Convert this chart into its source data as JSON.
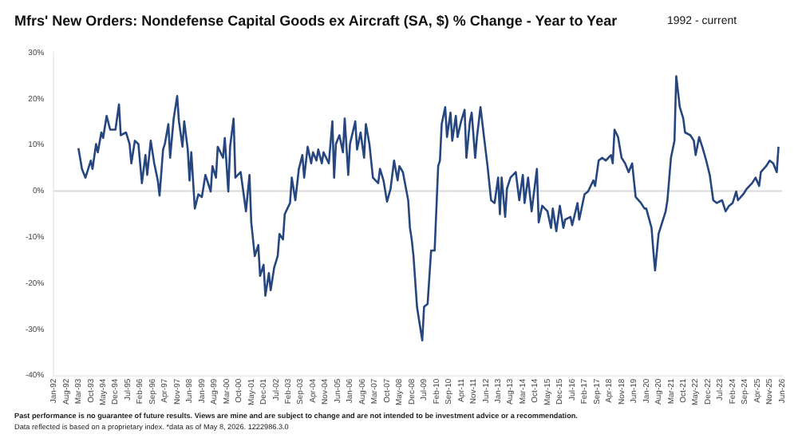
{
  "chart_data": {
    "type": "line",
    "title": "Mfrs' New Orders: Nondefense Capital Goods ex Aircraft (SA, $) % Change - Year to Year",
    "subtitle": "1992 - current",
    "annotations": [
      "Past performance is no guarantee of future results. Views are mine and are subject to change and are not intended to be investment advice or a recommendation.",
      "Data reflected is based on a proprietary index. *data as of May 8, 2026. 1222986.3.0"
    ],
    "x": [
      "1993-03",
      "1993-05",
      "1993-07",
      "1993-10",
      "1993-11",
      "1994-01",
      "1994-02",
      "1994-04",
      "1994-05",
      "1994-07",
      "1994-09",
      "1994-12",
      "1995-02",
      "1995-03",
      "1995-06",
      "1995-08",
      "1995-09",
      "1995-11",
      "1996-01",
      "1996-03",
      "1996-05",
      "1996-06",
      "1996-08",
      "1996-10",
      "1996-12",
      "1997-01",
      "1997-03",
      "1997-04",
      "1997-06",
      "1997-07",
      "1997-09",
      "1997-11",
      "1997-12",
      "1998-02",
      "1998-03",
      "1998-05",
      "1998-06",
      "1998-07",
      "1998-09",
      "1998-11",
      "1999-01",
      "1999-03",
      "1999-06",
      "1999-07",
      "1999-09",
      "1999-10",
      "2000-01",
      "2000-02",
      "2000-04",
      "2000-05",
      "2000-07",
      "2000-08",
      "2000-11",
      "2001-02",
      "2001-04",
      "2001-05",
      "2001-07",
      "2001-09",
      "2001-10",
      "2001-12",
      "2002-01",
      "2002-03",
      "2002-04",
      "2002-06",
      "2002-08",
      "2002-09",
      "2002-11",
      "2002-12",
      "2003-03",
      "2003-04",
      "2003-06",
      "2003-08",
      "2003-10",
      "2003-11",
      "2004-01",
      "2004-03",
      "2004-04",
      "2004-06",
      "2004-07",
      "2004-09",
      "2004-10",
      "2005-01",
      "2005-03",
      "2005-04",
      "2005-05",
      "2005-07",
      "2005-09",
      "2005-10",
      "2005-12",
      "2006-01",
      "2006-04",
      "2006-05",
      "2006-07",
      "2006-09",
      "2006-10",
      "2006-12",
      "2007-02",
      "2007-05",
      "2007-06",
      "2007-08",
      "2007-10",
      "2007-12",
      "2008-02",
      "2008-04",
      "2008-05",
      "2008-07",
      "2008-10",
      "2008-11",
      "2008-12",
      "2009-01",
      "2009-03",
      "2009-04",
      "2009-06",
      "2009-07",
      "2009-09",
      "2009-11",
      "2010-01",
      "2010-03",
      "2010-04",
      "2010-05",
      "2010-07",
      "2010-08",
      "2010-10",
      "2010-11",
      "2011-01",
      "2011-02",
      "2011-04",
      "2011-06",
      "2011-07",
      "2011-09",
      "2011-10",
      "2011-12",
      "2012-01",
      "2012-03",
      "2012-05",
      "2012-07",
      "2012-09",
      "2012-11",
      "2013-01",
      "2013-02",
      "2013-03",
      "2013-05",
      "2013-06",
      "2013-08",
      "2013-11",
      "2014-01",
      "2014-03",
      "2014-04",
      "2014-06",
      "2014-08",
      "2014-11",
      "2014-12",
      "2015-02",
      "2015-05",
      "2015-07",
      "2015-08",
      "2015-10",
      "2015-12",
      "2016-02",
      "2016-03",
      "2016-06",
      "2016-07",
      "2016-10",
      "2016-11",
      "2017-02",
      "2017-04",
      "2017-07",
      "2017-08",
      "2017-10",
      "2017-12",
      "2018-02",
      "2018-05",
      "2018-06",
      "2018-07",
      "2018-09",
      "2018-11",
      "2019-01",
      "2019-03",
      "2019-05",
      "2019-07",
      "2019-10",
      "2019-12",
      "2020-01",
      "2020-04",
      "2020-05",
      "2020-06",
      "2020-08",
      "2020-12",
      "2021-01",
      "2021-03",
      "2021-05",
      "2021-06",
      "2021-08",
      "2021-10",
      "2021-11",
      "2022-02",
      "2022-04",
      "2022-05",
      "2022-07",
      "2022-09",
      "2022-11",
      "2023-01",
      "2023-03",
      "2023-05",
      "2023-08",
      "2023-10",
      "2023-12",
      "2024-02",
      "2024-04",
      "2024-05",
      "2024-08",
      "2024-10",
      "2025-01",
      "2025-03",
      "2025-05",
      "2025-06",
      "2025-09",
      "2025-11",
      "2026-01",
      "2026-03",
      "2026-04"
    ],
    "series": [
      {
        "color": "#25467f",
        "values": [
          9.3,
          4.8,
          2.9,
          6.6,
          4.8,
          10.2,
          8.4,
          12.7,
          11.5,
          16.3,
          13.3,
          13.3,
          18.8,
          12.1,
          12.7,
          10.2,
          6.0,
          10.9,
          10.2,
          1.7,
          7.8,
          3.5,
          10.9,
          6.0,
          2.3,
          -1.0,
          9.0,
          10.2,
          14.5,
          7.2,
          15.7,
          20.6,
          15.1,
          9.6,
          15.1,
          9.0,
          2.3,
          8.4,
          -3.8,
          -0.7,
          -1.3,
          3.5,
          -0.1,
          5.4,
          2.9,
          9.6,
          7.2,
          11.5,
          -0.1,
          9.6,
          15.7,
          2.9,
          4.1,
          -4.4,
          3.5,
          -6.8,
          -14.1,
          -11.7,
          -18.4,
          -16.0,
          -22.7,
          -17.8,
          -21.5,
          -16.6,
          -14.1,
          -9.3,
          -10.5,
          -5.0,
          -2.6,
          2.9,
          -2.0,
          4.8,
          7.8,
          2.9,
          9.6,
          6.0,
          8.4,
          6.6,
          9.0,
          6.0,
          8.4,
          6.0,
          15.1,
          2.9,
          10.2,
          12.1,
          8.4,
          15.7,
          3.5,
          10.2,
          15.1,
          9.0,
          12.7,
          7.2,
          14.5,
          10.2,
          2.9,
          1.7,
          4.8,
          2.3,
          -2.3,
          0.5,
          6.6,
          2.3,
          5.4,
          4.1,
          -2.0,
          -8.0,
          -10.5,
          -14.1,
          -25.1,
          -27.6,
          -32.4,
          -25.1,
          -24.5,
          -12.9,
          -12.9,
          5.4,
          6.6,
          14.5,
          18.2,
          11.7,
          17.0,
          10.9,
          16.3,
          11.7,
          15.1,
          17.6,
          7.2,
          15.1,
          17.0,
          7.2,
          11.7,
          18.2,
          11.7,
          5.4,
          -2.0,
          -2.6,
          2.9,
          -5.0,
          2.9,
          -5.6,
          0.5,
          2.9,
          4.1,
          -2.0,
          3.5,
          -2.6,
          2.9,
          -4.4,
          4.8,
          -6.8,
          -3.2,
          -4.4,
          -8.0,
          -3.8,
          -8.7,
          -3.2,
          -8.0,
          -6.2,
          -5.6,
          -7.4,
          -2.6,
          -6.2,
          -0.7,
          -0.1,
          2.3,
          1.1,
          6.6,
          7.2,
          6.6,
          7.8,
          6.0,
          13.3,
          11.7,
          7.2,
          6.0,
          4.1,
          6.0,
          -1.3,
          -2.6,
          -3.8,
          -3.8,
          -8.0,
          -12.9,
          -17.2,
          -9.3,
          -4.4,
          -2.0,
          7.2,
          10.9,
          24.9,
          18.2,
          15.7,
          12.7,
          12.1,
          10.9,
          7.8,
          11.7,
          9.3,
          6.6,
          3.5,
          -2.0,
          -2.6,
          -2.0,
          -4.4,
          -3.2,
          -2.6,
          -0.1,
          -2.0,
          -0.7,
          0.5,
          1.7,
          2.9,
          1.1,
          4.1,
          5.4,
          6.6,
          6.0,
          4.1,
          9.6
        ]
      }
    ],
    "xlim": [
      "1992-01",
      "2026-06"
    ],
    "xticks": [
      {
        "value": "1992-01",
        "label": "Jan-92"
      },
      {
        "value": "1992-08",
        "label": "Aug-92"
      },
      {
        "value": "1993-03",
        "label": "Mar-93"
      },
      {
        "value": "1993-10",
        "label": "Oct-93"
      },
      {
        "value": "1994-05",
        "label": "May-94"
      },
      {
        "value": "1994-12",
        "label": "Dec-94"
      },
      {
        "value": "1995-07",
        "label": "Jul-95"
      },
      {
        "value": "1996-02",
        "label": "Feb-96"
      },
      {
        "value": "1996-09",
        "label": "Sep-96"
      },
      {
        "value": "1997-04",
        "label": "Apr-97"
      },
      {
        "value": "1997-11",
        "label": "Nov-97"
      },
      {
        "value": "1998-06",
        "label": "Jun-98"
      },
      {
        "value": "1999-01",
        "label": "Jan-99"
      },
      {
        "value": "1999-08",
        "label": "Aug-99"
      },
      {
        "value": "2000-03",
        "label": "Mar-00"
      },
      {
        "value": "2000-10",
        "label": "Oct-00"
      },
      {
        "value": "2001-05",
        "label": "May-01"
      },
      {
        "value": "2001-12",
        "label": "Dec-01"
      },
      {
        "value": "2002-07",
        "label": "Jul-02"
      },
      {
        "value": "2003-02",
        "label": "Feb-03"
      },
      {
        "value": "2003-09",
        "label": "Sep-03"
      },
      {
        "value": "2004-04",
        "label": "Apr-04"
      },
      {
        "value": "2004-11",
        "label": "Nov-04"
      },
      {
        "value": "2005-06",
        "label": "Jun-05"
      },
      {
        "value": "2006-01",
        "label": "Jan-06"
      },
      {
        "value": "2006-08",
        "label": "Aug-06"
      },
      {
        "value": "2007-03",
        "label": "Mar-07"
      },
      {
        "value": "2007-10",
        "label": "Oct-07"
      },
      {
        "value": "2008-05",
        "label": "May-08"
      },
      {
        "value": "2008-12",
        "label": "Dec-08"
      },
      {
        "value": "2009-07",
        "label": "Jul-09"
      },
      {
        "value": "2010-02",
        "label": "Feb-10"
      },
      {
        "value": "2010-09",
        "label": "Sep-10"
      },
      {
        "value": "2011-04",
        "label": "Apr-11"
      },
      {
        "value": "2011-11",
        "label": "Nov-11"
      },
      {
        "value": "2012-06",
        "label": "Jun-12"
      },
      {
        "value": "2013-01",
        "label": "Jan-13"
      },
      {
        "value": "2013-08",
        "label": "Aug-13"
      },
      {
        "value": "2014-03",
        "label": "Mar-14"
      },
      {
        "value": "2014-10",
        "label": "Oct-14"
      },
      {
        "value": "2015-05",
        "label": "May-15"
      },
      {
        "value": "2015-12",
        "label": "Dec-15"
      },
      {
        "value": "2016-07",
        "label": "Jul-16"
      },
      {
        "value": "2017-02",
        "label": "Feb-17"
      },
      {
        "value": "2017-09",
        "label": "Sep-17"
      },
      {
        "value": "2018-04",
        "label": "Apr-18"
      },
      {
        "value": "2018-11",
        "label": "Nov-18"
      },
      {
        "value": "2019-06",
        "label": "Jun-19"
      },
      {
        "value": "2020-01",
        "label": "Jan-20"
      },
      {
        "value": "2020-08",
        "label": "Aug-20"
      },
      {
        "value": "2021-03",
        "label": "Mar-21"
      },
      {
        "value": "2021-10",
        "label": "Oct-21"
      },
      {
        "value": "2022-05",
        "label": "May-22"
      },
      {
        "value": "2022-12",
        "label": "Dec-22"
      },
      {
        "value": "2023-07",
        "label": "Jul-23"
      },
      {
        "value": "2024-02",
        "label": "Feb-24"
      },
      {
        "value": "2024-09",
        "label": "Sep-24"
      },
      {
        "value": "2025-04",
        "label": "Apr-25"
      },
      {
        "value": "2025-11",
        "label": "Nov-25"
      },
      {
        "value": "2026-06",
        "label": "Jun-26"
      }
    ],
    "ylim": [
      -40,
      30
    ],
    "yticks": [
      {
        "value": -40,
        "label": "-40%"
      },
      {
        "value": -30,
        "label": "-30%"
      },
      {
        "value": -20,
        "label": "-20%"
      },
      {
        "value": -10,
        "label": "-10%"
      },
      {
        "value": 0,
        "label": "0%"
      },
      {
        "value": 10,
        "label": "10%"
      },
      {
        "value": 20,
        "label": "20%"
      },
      {
        "value": 30,
        "label": "30%"
      }
    ],
    "ref_lines": [
      {
        "axis": "y",
        "value": 0,
        "color": "#d9d9d9"
      }
    ],
    "marker": "none",
    "line_style": "solid"
  }
}
